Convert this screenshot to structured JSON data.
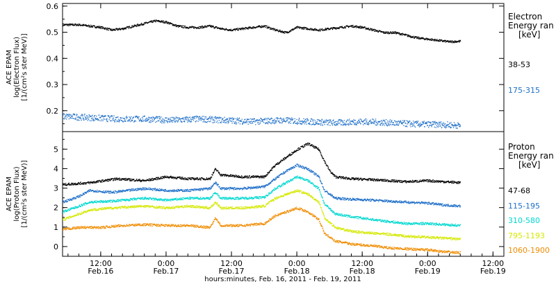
{
  "chart_data": [
    {
      "type": "scatter",
      "id": "electron",
      "ylabel_lines": [
        "ACE EPAM",
        "log(Electron Flux)",
        "[1/(cm²s ster MeV)]"
      ],
      "ylim": [
        0.12,
        0.61
      ],
      "yticks": [
        0.2,
        0.3,
        0.4,
        0.5,
        0.6
      ],
      "ytick_labels": [
        "0.2",
        "0.3",
        "0.4",
        "0.5",
        "0.6"
      ],
      "legend_title": [
        "Electron",
        "Energy ran",
        "[keV]"
      ],
      "legend_placement": "right",
      "x_unit": "hours since Feb.16 00:00",
      "series": [
        {
          "name": "38-53",
          "color": "#000000",
          "spread": 0.004,
          "points": [
            [
              5,
              0.53
            ],
            [
              8,
              0.53
            ],
            [
              10,
              0.525
            ],
            [
              12,
              0.52
            ],
            [
              14,
              0.51
            ],
            [
              16,
              0.515
            ],
            [
              18,
              0.525
            ],
            [
              20,
              0.535
            ],
            [
              22,
              0.545
            ],
            [
              24,
              0.54
            ],
            [
              26,
              0.525
            ],
            [
              28,
              0.52
            ],
            [
              30,
              0.52
            ],
            [
              32,
              0.525
            ],
            [
              34,
              0.515
            ],
            [
              36,
              0.51
            ],
            [
              38,
              0.515
            ],
            [
              40,
              0.52
            ],
            [
              42,
              0.525
            ],
            [
              44,
              0.51
            ],
            [
              46,
              0.5
            ],
            [
              48,
              0.52
            ],
            [
              50,
              0.515
            ],
            [
              52,
              0.51
            ],
            [
              54,
              0.515
            ],
            [
              56,
              0.52
            ],
            [
              58,
              0.525
            ],
            [
              60,
              0.52
            ],
            [
              62,
              0.51
            ],
            [
              64,
              0.5
            ],
            [
              66,
              0.5
            ],
            [
              68,
              0.49
            ],
            [
              70,
              0.48
            ],
            [
              72,
              0.475
            ],
            [
              74,
              0.47
            ],
            [
              76,
              0.465
            ],
            [
              78,
              0.467
            ]
          ]
        },
        {
          "name": "175-315",
          "color": "#1e6fc8",
          "spread": 0.012,
          "points": [
            [
              5,
              0.18
            ],
            [
              10,
              0.175
            ],
            [
              15,
              0.17
            ],
            [
              20,
              0.17
            ],
            [
              25,
              0.165
            ],
            [
              30,
              0.17
            ],
            [
              35,
              0.165
            ],
            [
              40,
              0.16
            ],
            [
              45,
              0.165
            ],
            [
              50,
              0.16
            ],
            [
              55,
              0.155
            ],
            [
              60,
              0.16
            ],
            [
              65,
              0.155
            ],
            [
              70,
              0.15
            ],
            [
              75,
              0.148
            ],
            [
              78,
              0.145
            ]
          ]
        }
      ]
    },
    {
      "type": "scatter",
      "id": "proton",
      "ylabel_lines": [
        "ACE EPAM",
        "log(Proton Flux)",
        "[1/(cm²s ster MeV)]"
      ],
      "ylim": [
        -0.5,
        5.9
      ],
      "yticks": [
        0,
        1,
        2,
        3,
        4,
        5
      ],
      "ytick_labels": [
        "0",
        "1",
        "2",
        "3",
        "4",
        "5"
      ],
      "xticks": [
        12,
        24,
        36,
        48,
        60,
        72,
        84
      ],
      "xtick_labels": [
        [
          "12:00",
          "Feb.16"
        ],
        [
          "0:00",
          "Feb.17"
        ],
        [
          "12:00",
          "Feb.17"
        ],
        [
          "0:00",
          "Feb.18"
        ],
        [
          "12:00",
          "Feb.18"
        ],
        [
          "0:00",
          "Feb.19"
        ],
        [
          "12:00",
          "Feb.19"
        ]
      ],
      "xlim": [
        5,
        86
      ],
      "xlabel": "hours:minutes, Feb. 16, 2011 - Feb. 19, 2011",
      "legend_title": [
        "Proton",
        "Energy ran",
        "[keV]"
      ],
      "legend_placement": "right",
      "series": [
        {
          "name": "47-68",
          "color": "#000000",
          "spread": 0.06,
          "points": [
            [
              5,
              3.2
            ],
            [
              10,
              3.3
            ],
            [
              15,
              3.5
            ],
            [
              20,
              3.4
            ],
            [
              24,
              3.6
            ],
            [
              28,
              3.5
            ],
            [
              32,
              3.5
            ],
            [
              33,
              4.0
            ],
            [
              34,
              3.7
            ],
            [
              38,
              3.6
            ],
            [
              42,
              3.6
            ],
            [
              44,
              4.2
            ],
            [
              46,
              4.6
            ],
            [
              48,
              5.0
            ],
            [
              50,
              5.3
            ],
            [
              52,
              5.0
            ],
            [
              53,
              4.4
            ],
            [
              54,
              3.9
            ],
            [
              55,
              3.6
            ],
            [
              58,
              3.5
            ],
            [
              62,
              3.45
            ],
            [
              65,
              3.4
            ],
            [
              68,
              3.35
            ],
            [
              72,
              3.4
            ],
            [
              75,
              3.35
            ],
            [
              78,
              3.3
            ]
          ]
        },
        {
          "name": "115-195",
          "color": "#1e6fc8",
          "spread": 0.06,
          "points": [
            [
              5,
              2.3
            ],
            [
              8,
              2.6
            ],
            [
              10,
              2.9
            ],
            [
              14,
              2.8
            ],
            [
              20,
              3.0
            ],
            [
              24,
              2.9
            ],
            [
              28,
              2.9
            ],
            [
              32,
              3.0
            ],
            [
              33,
              3.3
            ],
            [
              34,
              3.0
            ],
            [
              38,
              3.0
            ],
            [
              42,
              3.1
            ],
            [
              44,
              3.5
            ],
            [
              46,
              3.9
            ],
            [
              48,
              4.2
            ],
            [
              50,
              4.0
            ],
            [
              52,
              3.6
            ],
            [
              53,
              2.9
            ],
            [
              55,
              2.5
            ],
            [
              58,
              2.45
            ],
            [
              62,
              2.4
            ],
            [
              65,
              2.35
            ],
            [
              68,
              2.3
            ],
            [
              72,
              2.25
            ],
            [
              75,
              2.15
            ],
            [
              78,
              2.1
            ]
          ]
        },
        {
          "name": "310-580",
          "color": "#00d8d0",
          "spread": 0.06,
          "points": [
            [
              5,
              1.8
            ],
            [
              8,
              2.1
            ],
            [
              10,
              2.3
            ],
            [
              14,
              2.35
            ],
            [
              20,
              2.5
            ],
            [
              24,
              2.4
            ],
            [
              28,
              2.5
            ],
            [
              32,
              2.5
            ],
            [
              33,
              2.8
            ],
            [
              34,
              2.5
            ],
            [
              38,
              2.5
            ],
            [
              42,
              2.55
            ],
            [
              44,
              3.0
            ],
            [
              46,
              3.3
            ],
            [
              48,
              3.6
            ],
            [
              50,
              3.4
            ],
            [
              52,
              3.0
            ],
            [
              53,
              2.2
            ],
            [
              55,
              1.7
            ],
            [
              58,
              1.55
            ],
            [
              62,
              1.4
            ],
            [
              65,
              1.3
            ],
            [
              68,
              1.2
            ],
            [
              72,
              1.2
            ],
            [
              75,
              1.15
            ],
            [
              78,
              1.1
            ]
          ]
        },
        {
          "name": "795-1193",
          "color": "#d4e800",
          "spread": 0.06,
          "points": [
            [
              5,
              1.4
            ],
            [
              8,
              1.7
            ],
            [
              10,
              1.9
            ],
            [
              14,
              2.0
            ],
            [
              20,
              2.1
            ],
            [
              24,
              2.0
            ],
            [
              28,
              2.1
            ],
            [
              32,
              2.0
            ],
            [
              33,
              2.3
            ],
            [
              34,
              2.0
            ],
            [
              38,
              2.0
            ],
            [
              42,
              2.1
            ],
            [
              44,
              2.5
            ],
            [
              46,
              2.7
            ],
            [
              48,
              2.9
            ],
            [
              50,
              2.7
            ],
            [
              52,
              2.3
            ],
            [
              53,
              1.5
            ],
            [
              55,
              1.0
            ],
            [
              58,
              0.8
            ],
            [
              62,
              0.7
            ],
            [
              65,
              0.65
            ],
            [
              68,
              0.55
            ],
            [
              72,
              0.5
            ],
            [
              75,
              0.45
            ],
            [
              78,
              0.4
            ]
          ]
        },
        {
          "name": "1060-1900",
          "color": "#f08c00",
          "spread": 0.06,
          "points": [
            [
              5,
              0.9
            ],
            [
              8,
              1.0
            ],
            [
              12,
              1.0
            ],
            [
              16,
              1.1
            ],
            [
              20,
              1.15
            ],
            [
              24,
              1.1
            ],
            [
              28,
              1.1
            ],
            [
              32,
              1.0
            ],
            [
              33,
              1.5
            ],
            [
              34,
              1.1
            ],
            [
              38,
              1.1
            ],
            [
              42,
              1.2
            ],
            [
              44,
              1.6
            ],
            [
              46,
              1.8
            ],
            [
              48,
              2.0
            ],
            [
              50,
              1.8
            ],
            [
              52,
              1.4
            ],
            [
              53,
              0.7
            ],
            [
              55,
              0.3
            ],
            [
              58,
              0.15
            ],
            [
              62,
              0.05
            ],
            [
              65,
              -0.05
            ],
            [
              68,
              -0.1
            ],
            [
              72,
              -0.15
            ],
            [
              75,
              -0.25
            ],
            [
              78,
              -0.3
            ]
          ]
        }
      ]
    }
  ]
}
